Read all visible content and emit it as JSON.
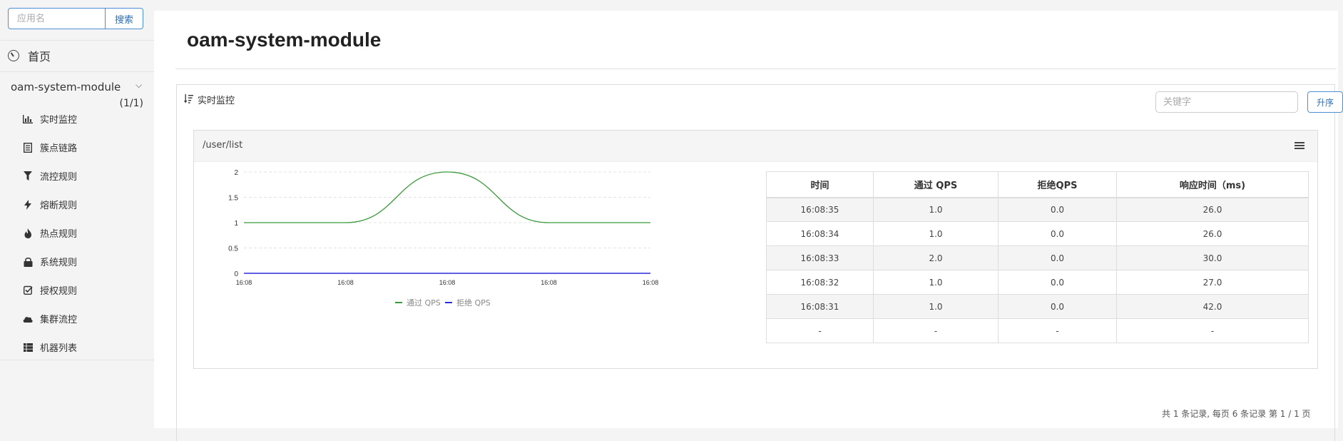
{
  "sidebar": {
    "search_placeholder": "应用名",
    "search_button": "搜索",
    "home_label": "首页",
    "app_name": "oam-system-module",
    "app_count": "(1/1)",
    "items": [
      {
        "label": "实时监控",
        "icon": "bar-chart-icon"
      },
      {
        "label": "簇点链路",
        "icon": "list-alt-icon"
      },
      {
        "label": "流控规则",
        "icon": "filter-icon"
      },
      {
        "label": "熔断规则",
        "icon": "flash-icon"
      },
      {
        "label": "热点规则",
        "icon": "fire-icon"
      },
      {
        "label": "系统规则",
        "icon": "lock-icon"
      },
      {
        "label": "授权规则",
        "icon": "check-icon"
      },
      {
        "label": "集群流控",
        "icon": "cloud-icon"
      },
      {
        "label": "机器列表",
        "icon": "th-list-icon"
      }
    ]
  },
  "main": {
    "title": "oam-system-module",
    "panel_title": "实时监控",
    "keyword_placeholder": "关键字",
    "sort_button": "升序",
    "card_title": "/user/list",
    "table": {
      "headers": [
        "时间",
        "通过 QPS",
        "拒绝QPS",
        "响应时间（ms)"
      ],
      "rows": [
        [
          "16:08:35",
          "1.0",
          "0.0",
          "26.0"
        ],
        [
          "16:08:34",
          "1.0",
          "0.0",
          "26.0"
        ],
        [
          "16:08:33",
          "2.0",
          "0.0",
          "30.0"
        ],
        [
          "16:08:32",
          "1.0",
          "0.0",
          "27.0"
        ],
        [
          "16:08:31",
          "1.0",
          "0.0",
          "42.0"
        ],
        [
          "-",
          "-",
          "-",
          "-"
        ]
      ]
    },
    "footer": "共 1 条记录, 每页 6 条记录 第 1 / 1 页"
  },
  "colors": {
    "pass": "#3a9a3a",
    "reject": "#2b2bd8",
    "accent": "#2a6db8"
  },
  "chart_data": {
    "type": "line",
    "x": [
      "16:08",
      "16:08",
      "16:08",
      "16:08",
      "16:08"
    ],
    "y_ticks": [
      "0",
      "0.5",
      "1",
      "1.5",
      "2"
    ],
    "ylim": [
      0,
      2
    ],
    "series": [
      {
        "name": "通过 QPS",
        "values": [
          1,
          1,
          2,
          1,
          1
        ]
      },
      {
        "name": "拒绝 QPS",
        "values": [
          0,
          0,
          0,
          0,
          0
        ]
      }
    ],
    "legend": "bottom",
    "grid": true
  }
}
